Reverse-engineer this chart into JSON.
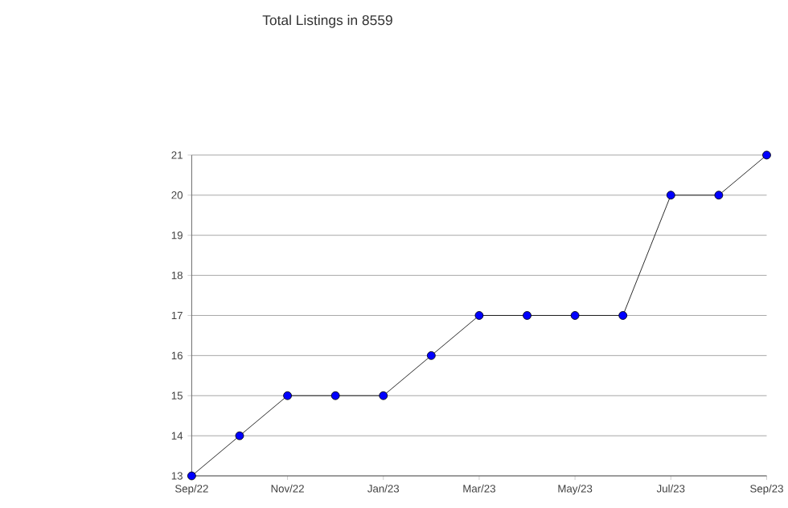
{
  "chart_data": {
    "type": "line",
    "title": "Total Listings in 8559",
    "x": [
      "2022-09",
      "2022-10",
      "2022-11",
      "2022-12",
      "2023-01",
      "2023-02",
      "2023-03",
      "2023-04",
      "2023-05",
      "2023-06",
      "2023-07",
      "2023-08",
      "2023-09"
    ],
    "values": [
      13,
      14,
      15,
      15,
      15,
      16,
      17,
      17,
      17,
      17,
      20,
      20,
      21
    ],
    "color": "#0000ff",
    "marker": "circle",
    "line_style": "solid",
    "grid": "y",
    "xlim": [
      "2022-09",
      "2023-09"
    ],
    "xticks": [
      {
        "value": "2022-09",
        "label": "Sep/22"
      },
      {
        "value": "2022-11",
        "label": "Nov/22"
      },
      {
        "value": "2023-01",
        "label": "Jan/23"
      },
      {
        "value": "2023-03",
        "label": "Mar/23"
      },
      {
        "value": "2023-05",
        "label": "May/23"
      },
      {
        "value": "2023-07",
        "label": "Jul/23"
      },
      {
        "value": "2023-09",
        "label": "Sep/23"
      }
    ],
    "ylim": [
      13,
      21
    ],
    "yticks": [
      13,
      14,
      15,
      16,
      17,
      18,
      19,
      20,
      21
    ]
  }
}
